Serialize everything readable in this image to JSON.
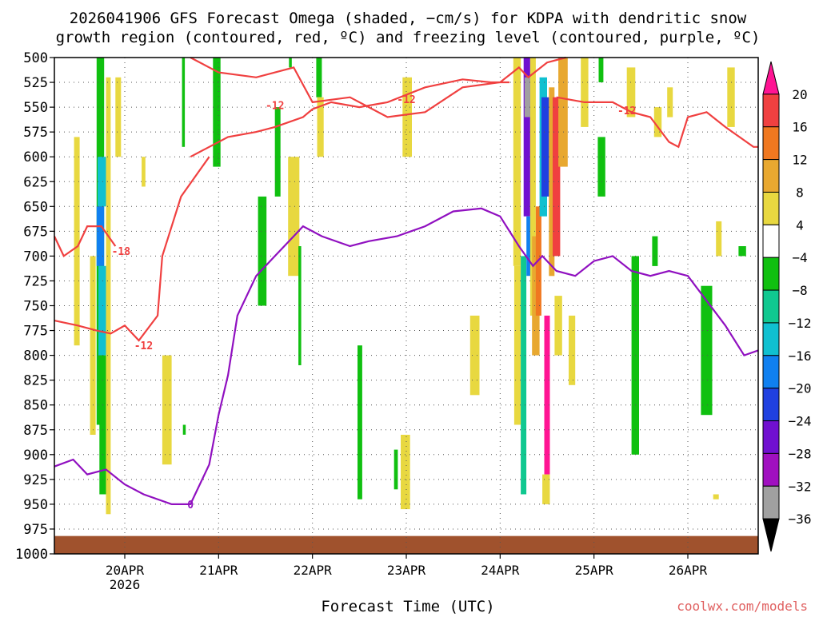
{
  "chart_data": {
    "type": "heatmap",
    "title_line1": "2026041906 GFS Forecast Omega (shaded, −cm/s) for KDPA with dendritic snow",
    "title_line2": "growth region (contoured, red, ºC) and freezing level (contoured, purple, ºC)",
    "xlabel": "Forecast Time (UTC)",
    "credit": "coolwx.com/models",
    "x_ticks": [
      {
        "t": 1.0,
        "label": "20APR",
        "sublabel": "2026"
      },
      {
        "t": 2.0,
        "label": "21APR"
      },
      {
        "t": 3.0,
        "label": "22APR"
      },
      {
        "t": 4.0,
        "label": "23APR"
      },
      {
        "t": 5.0,
        "label": "24APR"
      },
      {
        "t": 6.0,
        "label": "25APR"
      },
      {
        "t": 7.0,
        "label": "26APR"
      }
    ],
    "x_domain_days": [
      0.25,
      7.75
    ],
    "y_axis": "pressure (hPa)",
    "y_ticks": [
      500,
      525,
      550,
      575,
      600,
      625,
      650,
      675,
      700,
      725,
      750,
      775,
      800,
      825,
      850,
      875,
      900,
      925,
      950,
      975,
      1000
    ],
    "colorbar": {
      "labels": [
        "20",
        "16",
        "12",
        "8",
        "4",
        "−4",
        "−8",
        "−12",
        "−16",
        "−20",
        "−24",
        "−28",
        "−32",
        "−36"
      ],
      "colors": [
        "#ff1493",
        "#f04040",
        "#f07820",
        "#e8a830",
        "#e8d840",
        "#ffffff",
        "#10c010",
        "#10c890",
        "#10c0d0",
        "#1080f0",
        "#2040e0",
        "#7010d0",
        "#a010c0",
        "#a0a0a0",
        "#000000"
      ]
    },
    "omega_cells": [
      {
        "t0": 0.7,
        "t1": 0.78,
        "p0": 500,
        "p1": 870,
        "v": -6
      },
      {
        "t0": 0.71,
        "t1": 0.8,
        "p0": 600,
        "p1": 650,
        "v": -14
      },
      {
        "t0": 0.7,
        "t1": 0.78,
        "p0": 650,
        "p1": 710,
        "v": -18
      },
      {
        "t0": 0.72,
        "t1": 0.8,
        "p0": 710,
        "p1": 800,
        "v": -14
      },
      {
        "t0": 0.73,
        "t1": 0.8,
        "p0": 800,
        "p1": 940,
        "v": -6
      },
      {
        "t0": 0.8,
        "t1": 0.85,
        "p0": 520,
        "p1": 960,
        "v": 6
      },
      {
        "t0": 0.46,
        "t1": 0.52,
        "p0": 580,
        "p1": 790,
        "v": 6
      },
      {
        "t0": 0.63,
        "t1": 0.69,
        "p0": 700,
        "p1": 880,
        "v": 6
      },
      {
        "t0": 0.9,
        "t1": 0.96,
        "p0": 520,
        "p1": 600,
        "v": 6
      },
      {
        "t0": 1.18,
        "t1": 1.22,
        "p0": 600,
        "p1": 630,
        "v": 6
      },
      {
        "t0": 1.4,
        "t1": 1.5,
        "p0": 800,
        "p1": 910,
        "v": 6
      },
      {
        "t0": 1.61,
        "t1": 1.64,
        "p0": 500,
        "p1": 590,
        "v": -6
      },
      {
        "t0": 1.62,
        "t1": 1.65,
        "p0": 870,
        "p1": 880,
        "v": -6
      },
      {
        "t0": 1.94,
        "t1": 2.02,
        "p0": 500,
        "p1": 610,
        "v": -6
      },
      {
        "t0": 2.42,
        "t1": 2.51,
        "p0": 640,
        "p1": 750,
        "v": -6
      },
      {
        "t0": 2.6,
        "t1": 2.66,
        "p0": 550,
        "p1": 640,
        "v": -6
      },
      {
        "t0": 2.75,
        "t1": 2.78,
        "p0": 500,
        "p1": 510,
        "v": -6
      },
      {
        "t0": 2.74,
        "t1": 2.86,
        "p0": 600,
        "p1": 720,
        "v": 6
      },
      {
        "t0": 2.85,
        "t1": 2.88,
        "p0": 690,
        "p1": 810,
        "v": -6
      },
      {
        "t0": 3.04,
        "t1": 3.1,
        "p0": 500,
        "p1": 540,
        "v": -6
      },
      {
        "t0": 3.05,
        "t1": 3.12,
        "p0": 540,
        "p1": 600,
        "v": 6
      },
      {
        "t0": 3.48,
        "t1": 3.53,
        "p0": 790,
        "p1": 945,
        "v": -6
      },
      {
        "t0": 3.96,
        "t1": 4.06,
        "p0": 520,
        "p1": 600,
        "v": 6
      },
      {
        "t0": 3.94,
        "t1": 4.04,
        "p0": 880,
        "p1": 955,
        "v": 6
      },
      {
        "t0": 3.87,
        "t1": 3.91,
        "p0": 895,
        "p1": 935,
        "v": -6
      },
      {
        "t0": 4.68,
        "t1": 4.78,
        "p0": 760,
        "p1": 840,
        "v": 6
      },
      {
        "t0": 5.14,
        "t1": 5.22,
        "p0": 500,
        "p1": 710,
        "v": 6
      },
      {
        "t0": 5.15,
        "t1": 5.22,
        "p0": 710,
        "p1": 870,
        "v": 6
      },
      {
        "t0": 5.22,
        "t1": 5.28,
        "p0": 700,
        "p1": 940,
        "v": -10
      },
      {
        "t0": 5.25,
        "t1": 5.32,
        "p0": 500,
        "p1": 660,
        "v": -26
      },
      {
        "t0": 5.26,
        "t1": 5.32,
        "p0": 520,
        "p1": 560,
        "v": -33
      },
      {
        "t0": 5.28,
        "t1": 5.34,
        "p0": 660,
        "p1": 720,
        "v": -18
      },
      {
        "t0": 5.32,
        "t1": 5.38,
        "p0": 500,
        "p1": 760,
        "v": 6
      },
      {
        "t0": 5.34,
        "t1": 5.42,
        "p0": 680,
        "p1": 800,
        "v": 10
      },
      {
        "t0": 5.38,
        "t1": 5.44,
        "p0": 650,
        "p1": 760,
        "v": 14
      },
      {
        "t0": 5.42,
        "t1": 5.5,
        "p0": 520,
        "p1": 660,
        "v": -14
      },
      {
        "t0": 5.44,
        "t1": 5.52,
        "p0": 540,
        "p1": 640,
        "v": -20
      },
      {
        "t0": 5.47,
        "t1": 5.53,
        "p0": 760,
        "p1": 920,
        "v": 22
      },
      {
        "t0": 5.45,
        "t1": 5.53,
        "p0": 920,
        "p1": 950,
        "v": 6
      },
      {
        "t0": 5.52,
        "t1": 5.58,
        "p0": 530,
        "p1": 720,
        "v": 10
      },
      {
        "t0": 5.56,
        "t1": 5.64,
        "p0": 540,
        "p1": 700,
        "v": 18
      },
      {
        "t0": 5.62,
        "t1": 5.72,
        "p0": 500,
        "p1": 610,
        "v": 10
      },
      {
        "t0": 5.58,
        "t1": 5.66,
        "p0": 740,
        "p1": 800,
        "v": 6
      },
      {
        "t0": 5.73,
        "t1": 5.8,
        "p0": 760,
        "p1": 830,
        "v": 6
      },
      {
        "t0": 5.86,
        "t1": 5.94,
        "p0": 500,
        "p1": 570,
        "v": 6
      },
      {
        "t0": 6.05,
        "t1": 6.1,
        "p0": 500,
        "p1": 525,
        "v": -6
      },
      {
        "t0": 6.04,
        "t1": 6.12,
        "p0": 580,
        "p1": 640,
        "v": -6
      },
      {
        "t0": 6.35,
        "t1": 6.44,
        "p0": 510,
        "p1": 560,
        "v": 6
      },
      {
        "t0": 6.4,
        "t1": 6.48,
        "p0": 700,
        "p1": 900,
        "v": -6
      },
      {
        "t0": 6.62,
        "t1": 6.68,
        "p0": 680,
        "p1": 710,
        "v": -6
      },
      {
        "t0": 6.64,
        "t1": 6.72,
        "p0": 550,
        "p1": 580,
        "v": 6
      },
      {
        "t0": 6.78,
        "t1": 6.84,
        "p0": 530,
        "p1": 560,
        "v": 6
      },
      {
        "t0": 7.14,
        "t1": 7.26,
        "p0": 730,
        "p1": 860,
        "v": -6
      },
      {
        "t0": 7.3,
        "t1": 7.36,
        "p0": 665,
        "p1": 700,
        "v": 6
      },
      {
        "t0": 7.42,
        "t1": 7.5,
        "p0": 510,
        "p1": 570,
        "v": 6
      },
      {
        "t0": 7.54,
        "t1": 7.62,
        "p0": 690,
        "p1": 700,
        "v": -6
      },
      {
        "t0": 7.27,
        "t1": 7.33,
        "p0": 940,
        "p1": 945,
        "v": 6
      }
    ],
    "contours": [
      {
        "name": "dgz-minus-12-upper",
        "color": "#f04040",
        "label": "-12",
        "label_at": [
          4.0,
          542
        ],
        "points": [
          [
            1.7,
            500
          ],
          [
            2.0,
            515
          ],
          [
            2.4,
            520
          ],
          [
            2.8,
            510
          ],
          [
            3.0,
            545
          ],
          [
            3.4,
            540
          ],
          [
            3.8,
            560
          ],
          [
            4.2,
            555
          ],
          [
            4.6,
            530
          ],
          [
            5.0,
            525
          ],
          [
            5.2,
            510
          ],
          [
            5.3,
            520
          ],
          [
            5.5,
            505
          ],
          [
            5.7,
            500
          ]
        ]
      },
      {
        "name": "dgz-minus-12-mid",
        "color": "#f04040",
        "label": "-12",
        "label_at": [
          2.6,
          548
        ],
        "points": [
          [
            1.7,
            600
          ],
          [
            1.9,
            590
          ],
          [
            2.1,
            580
          ],
          [
            2.4,
            575
          ],
          [
            2.6,
            570
          ],
          [
            2.9,
            560
          ],
          [
            3.0,
            552
          ],
          [
            3.2,
            545
          ],
          [
            3.5,
            550
          ],
          [
            3.8,
            545
          ],
          [
            4.2,
            530
          ],
          [
            4.6,
            522
          ],
          [
            4.9,
            525
          ],
          [
            5.1,
            525
          ]
        ]
      },
      {
        "name": "dgz-minus-12-right",
        "color": "#f04040",
        "label": "-12",
        "label_at": [
          6.35,
          553
        ],
        "points": [
          [
            5.6,
            540
          ],
          [
            5.9,
            545
          ],
          [
            6.2,
            545
          ],
          [
            6.4,
            555
          ],
          [
            6.6,
            560
          ],
          [
            6.8,
            585
          ],
          [
            6.9,
            590
          ],
          [
            7.0,
            560
          ],
          [
            7.2,
            555
          ],
          [
            7.4,
            570
          ],
          [
            7.7,
            590
          ],
          [
            7.75,
            590
          ]
        ]
      },
      {
        "name": "dgz-minus-18",
        "color": "#f04040",
        "label": "-18",
        "label_at": [
          0.96,
          695
        ],
        "points": [
          [
            0.25,
            680
          ],
          [
            0.35,
            700
          ],
          [
            0.5,
            690
          ],
          [
            0.6,
            670
          ],
          [
            0.75,
            670
          ],
          [
            0.9,
            690
          ]
        ]
      },
      {
        "name": "dgz-minus-12-lower",
        "color": "#f04040",
        "label": "-12",
        "label_at": [
          1.2,
          790
        ],
        "points": [
          [
            0.25,
            765
          ],
          [
            0.5,
            770
          ],
          [
            0.7,
            775
          ],
          [
            0.85,
            778
          ],
          [
            1.0,
            770
          ],
          [
            1.15,
            785
          ],
          [
            1.35,
            760
          ],
          [
            1.4,
            700
          ],
          [
            1.6,
            640
          ],
          [
            1.9,
            600
          ]
        ]
      },
      {
        "name": "freezing-level",
        "color": "#9010c0",
        "label": "0",
        "label_at": [
          1.7,
          950
        ],
        "points": [
          [
            0.25,
            912
          ],
          [
            0.45,
            905
          ],
          [
            0.6,
            920
          ],
          [
            0.8,
            915
          ],
          [
            1.0,
            930
          ],
          [
            1.2,
            940
          ],
          [
            1.5,
            950
          ],
          [
            1.7,
            950
          ],
          [
            1.9,
            910
          ],
          [
            2.0,
            860
          ],
          [
            2.1,
            820
          ],
          [
            2.2,
            760
          ],
          [
            2.4,
            720
          ],
          [
            2.6,
            700
          ],
          [
            2.8,
            680
          ],
          [
            2.9,
            670
          ],
          [
            3.1,
            680
          ],
          [
            3.4,
            690
          ],
          [
            3.6,
            685
          ],
          [
            3.9,
            680
          ],
          [
            4.2,
            670
          ],
          [
            4.5,
            655
          ],
          [
            4.8,
            652
          ],
          [
            5.0,
            660
          ],
          [
            5.2,
            690
          ],
          [
            5.35,
            710
          ],
          [
            5.45,
            700
          ],
          [
            5.6,
            715
          ],
          [
            5.8,
            720
          ],
          [
            6.0,
            705
          ],
          [
            6.2,
            700
          ],
          [
            6.4,
            715
          ],
          [
            6.6,
            720
          ],
          [
            6.8,
            715
          ],
          [
            7.0,
            720
          ],
          [
            7.2,
            745
          ],
          [
            7.4,
            770
          ],
          [
            7.6,
            800
          ],
          [
            7.75,
            795
          ]
        ]
      }
    ],
    "legend": "colorbar right",
    "grid": "dotted"
  }
}
